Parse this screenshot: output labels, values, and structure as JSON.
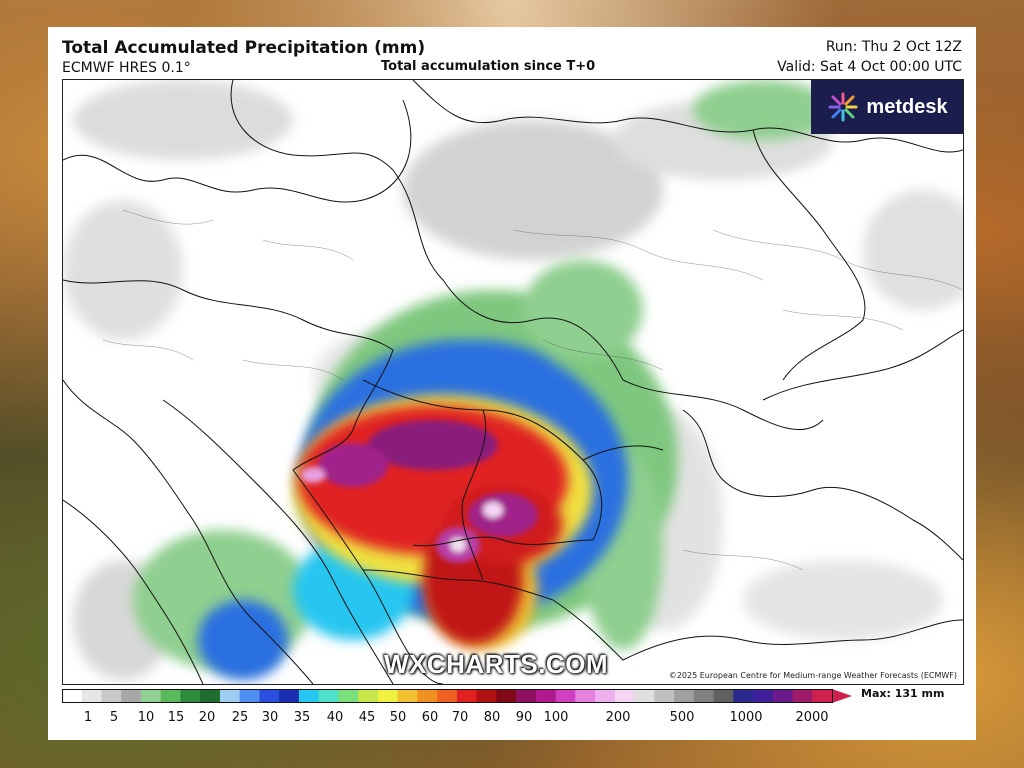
{
  "header": {
    "title": "Total Accumulated Precipitation (mm)",
    "model": "ECMWF HRES 0.1°",
    "subtitle": "Total accumulation since T+0",
    "run": "Run: Thu 2 Oct 12Z",
    "valid": "Valid: Sat 4 Oct 00:00 UTC"
  },
  "brand": {
    "logo_text": "metdesk",
    "watermark": "WXCHARTS.COM"
  },
  "copyright": "©2025 European Centre for Medium-range Weather Forecasts (ECMWF)",
  "legend": {
    "labels": [
      "1",
      "5",
      "10",
      "15",
      "20",
      "25",
      "30",
      "35",
      "40",
      "45",
      "50",
      "60",
      "70",
      "80",
      "90",
      "100",
      "200",
      "500",
      "1000",
      "2000"
    ],
    "max_label": "Max: 131 mm"
  },
  "colors": {
    "card_bg": "#ffffff",
    "logo_bg": "#1b1e4d",
    "bar_colors": [
      "#ffffff",
      "#e6e6e6",
      "#c8c8c8",
      "#a6a6a6",
      "#8fcf8f",
      "#5cb85c",
      "#2e8b3e",
      "#1f6b30",
      "#9ecbf0",
      "#4f8ff0",
      "#2a4fe0",
      "#1a2fb0",
      "#26c6f0",
      "#4fe0c8",
      "#7be07b",
      "#c6e64a",
      "#f0f040",
      "#f0c030",
      "#f09020",
      "#f06020",
      "#e02020",
      "#b01010",
      "#800818",
      "#901060",
      "#b01890",
      "#d040c0",
      "#e880e0",
      "#f0b0f0",
      "#f4d4f4",
      "#e0e0e0",
      "#c0c0c0",
      "#a0a0a0",
      "#808080",
      "#606060",
      "#2a2a8a",
      "#40209a",
      "#6a1a8a",
      "#a01a6a",
      "#d02050"
    ]
  }
}
